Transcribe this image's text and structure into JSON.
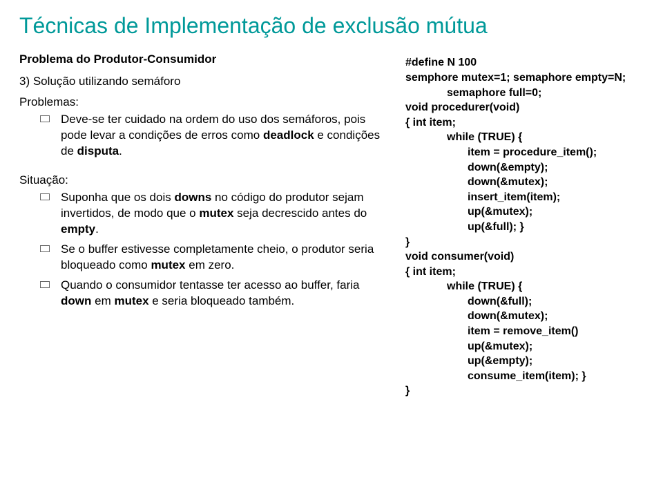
{
  "title": "Técnicas de Implementação de exclusão mútua",
  "left": {
    "heading1": "Problema do Produtor-Consumidor",
    "heading2": "3) Solução utilizando semáforo",
    "heading3": "Problemas:",
    "bullets1": [
      "Deve-se ter cuidado na ordem do uso dos semáforos, pois pode levar a condições de erros como deadlock e condições de disputa."
    ],
    "heading4": "Situação:",
    "bullets2": [
      "Suponha que os dois downs no código do produtor sejam invertidos, de modo que o mutex seja decrescido antes do empty.",
      "Se o buffer estivesse completamente cheio, o produtor seria bloqueado como mutex em zero.",
      "Quando o consumidor tentasse ter acesso ao buffer, faria down em mutex e seria bloqueado também."
    ]
  },
  "right": {
    "lines": [
      {
        "text": "#define N 100",
        "indent": 0
      },
      {
        "text": "semphore mutex=1; semaphore empty=N;",
        "indent": 0
      },
      {
        "text": "semaphore full=0;",
        "indent": 2
      },
      {
        "text": "void procedurer(void)",
        "indent": 0
      },
      {
        "text": "{    int item;",
        "indent": 0
      },
      {
        "text": "while (TRUE) {",
        "indent": 2
      },
      {
        "text": "item = procedure_item();",
        "indent": 3
      },
      {
        "text": "down(&empty);",
        "indent": 3
      },
      {
        "text": "down(&mutex);",
        "indent": 3
      },
      {
        "text": "insert_item(item);",
        "indent": 3
      },
      {
        "text": "up(&mutex);",
        "indent": 3
      },
      {
        "text": "up(&full); }",
        "indent": 3
      },
      {
        "text": "}",
        "indent": 0
      },
      {
        "text": "void consumer(void)",
        "indent": 0
      },
      {
        "text": "{    int item;",
        "indent": 0
      },
      {
        "text": "while (TRUE) {",
        "indent": 2
      },
      {
        "text": "down(&full);",
        "indent": 3
      },
      {
        "text": "down(&mutex);",
        "indent": 3
      },
      {
        "text": "item = remove_item()",
        "indent": 3
      },
      {
        "text": "up(&mutex);",
        "indent": 3
      },
      {
        "text": "up(&empty);",
        "indent": 3
      },
      {
        "text": "consume_item(item); }",
        "indent": 3
      },
      {
        "text": "}",
        "indent": 0
      }
    ]
  },
  "colors": {
    "title_color": "#009999",
    "text_color": "#000000",
    "bullet_border": "#666666",
    "background": "#ffffff"
  }
}
